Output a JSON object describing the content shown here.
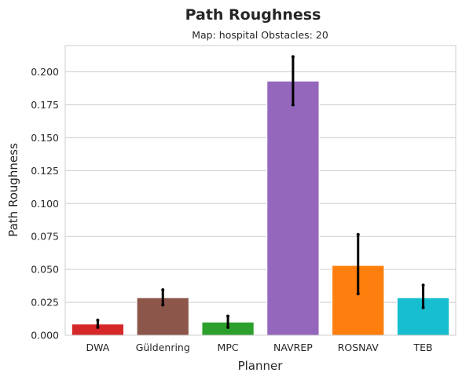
{
  "chart_data": {
    "type": "bar",
    "title": "Path Roughness",
    "subtitle": "Map: hospital Obstacles: 20",
    "xlabel": "Planner",
    "ylabel": "Path Roughness",
    "ylim": [
      0,
      0.22
    ],
    "yticks": [
      "0.000",
      "0.025",
      "0.050",
      "0.075",
      "0.100",
      "0.125",
      "0.150",
      "0.175",
      "0.200"
    ],
    "grid": true,
    "categories": [
      "DWA",
      "Güldenring",
      "MPC",
      "NAVREP",
      "ROSNAV",
      "TEB"
    ],
    "values": [
      0.0085,
      0.0285,
      0.01,
      0.193,
      0.053,
      0.0285
    ],
    "error_low": [
      0.006,
      0.023,
      0.006,
      0.175,
      0.0315,
      0.021
    ],
    "error_high": [
      0.0115,
      0.0345,
      0.0145,
      0.2115,
      0.0765,
      0.038
    ],
    "colors": [
      "#d62728",
      "#8c564b",
      "#2ca02c",
      "#9467bd",
      "#ff7f0e",
      "#17becf"
    ]
  }
}
